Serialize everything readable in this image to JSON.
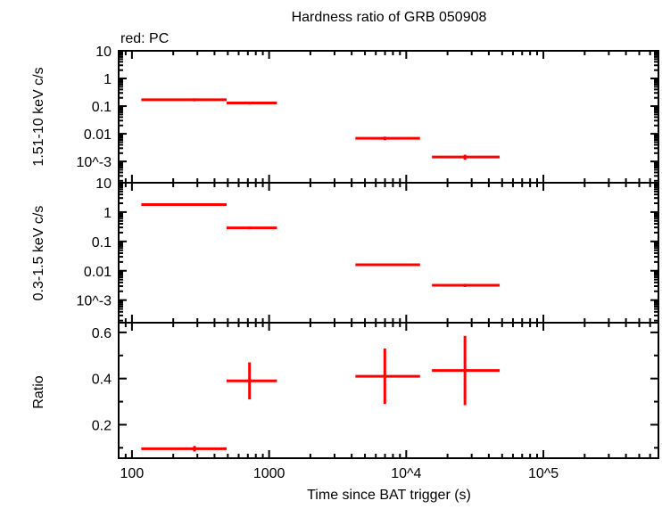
{
  "chart_data": {
    "type": "scatter",
    "title": "Hardness ratio of GRB 050908",
    "legend_text": "red: PC",
    "xlabel": "Time since BAT trigger (s)",
    "x_scale": "log",
    "xlim": [
      80,
      690000
    ],
    "x_tick_labels": [
      "100",
      "1000",
      "10^4",
      "10^5"
    ],
    "series_color": "#ff0000",
    "panels": [
      {
        "ylabel": "1.51-10 keV c/s",
        "y_scale": "log",
        "ylim": [
          0.00017,
          10
        ],
        "y_tick_labels": [
          "10",
          "1",
          "0.1",
          "0.01",
          "10^-3"
        ],
        "points": [
          {
            "x": 286,
            "x_lo": 117,
            "x_hi": 490,
            "y": 0.17,
            "y_err": 0.02
          },
          {
            "x": 720,
            "x_lo": 490,
            "x_hi": 1140,
            "y": 0.13,
            "y_err": 0.015
          },
          {
            "x": 6980,
            "x_lo": 4260,
            "x_hi": 12600,
            "y": 0.0069,
            "y_err": 0.001
          },
          {
            "x": 26800,
            "x_lo": 15400,
            "x_hi": 48000,
            "y": 0.00145,
            "y_err": 0.0003
          }
        ]
      },
      {
        "ylabel": "0.3-1.5 keV c/s",
        "y_scale": "log",
        "ylim": [
          0.00017,
          10
        ],
        "y_tick_labels": [
          "10",
          "1",
          "0.1",
          "0.01",
          "10^-3"
        ],
        "points": [
          {
            "x": 286,
            "x_lo": 117,
            "x_hi": 490,
            "y": 1.8,
            "y_err": 0.1
          },
          {
            "x": 720,
            "x_lo": 490,
            "x_hi": 1140,
            "y": 0.29,
            "y_err": 0.03
          },
          {
            "x": 6980,
            "x_lo": 4260,
            "x_hi": 12600,
            "y": 0.016,
            "y_err": 0.0015
          },
          {
            "x": 26800,
            "x_lo": 15400,
            "x_hi": 48000,
            "y": 0.0032,
            "y_err": 0.0004
          }
        ]
      },
      {
        "ylabel": "Ratio",
        "y_scale": "linear",
        "ylim": [
          0.055,
          0.642
        ],
        "y_ticks": [
          0.2,
          0.4,
          0.6
        ],
        "y_tick_labels": [
          "0.2",
          "0.4",
          "0.6"
        ],
        "points": [
          {
            "x": 286,
            "x_lo": 117,
            "x_hi": 490,
            "y": 0.096,
            "y_err": 0.012
          },
          {
            "x": 720,
            "x_lo": 490,
            "x_hi": 1140,
            "y": 0.39,
            "y_err": 0.08
          },
          {
            "x": 6980,
            "x_lo": 4260,
            "x_hi": 12600,
            "y": 0.41,
            "y_err": 0.12
          },
          {
            "x": 26800,
            "x_lo": 15400,
            "x_hi": 48000,
            "y": 0.435,
            "y_err": 0.15
          }
        ]
      }
    ]
  }
}
